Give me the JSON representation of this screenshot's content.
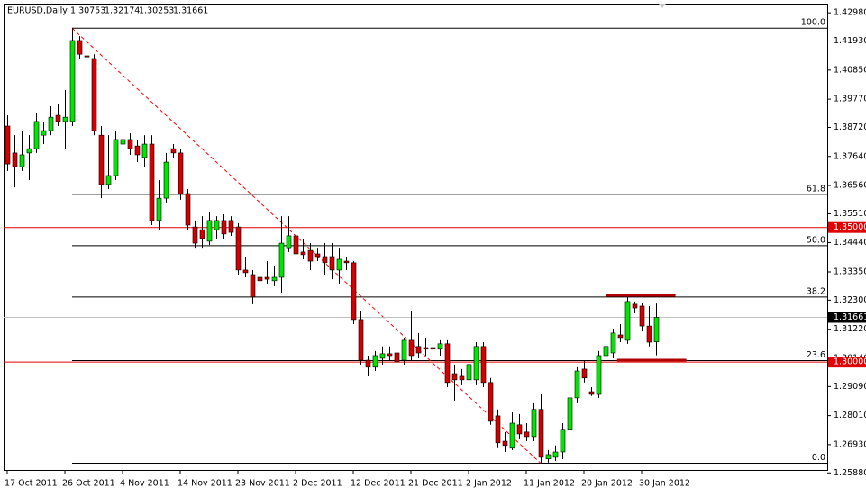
{
  "chart_data": {
    "type": "candlestick",
    "symbol": "EURUSD,Daily",
    "up_color": "#00e600",
    "down_color": "#d40000",
    "open": [
      1.3877,
      1.3777,
      1.3726,
      1.3777,
      1.3793,
      1.3843,
      1.386,
      1.3917,
      1.3894,
      1.3894,
      1.4195,
      1.4138,
      1.4128,
      1.3843,
      1.366,
      1.3693,
      1.381,
      1.3827,
      1.3803,
      1.376,
      1.381,
      1.3526,
      1.3609,
      1.3793,
      1.3777,
      1.3626,
      1.3502,
      1.3492,
      1.3449,
      1.3492,
      1.3526,
      1.3526,
      1.3502,
      1.3342,
      1.3325,
      1.3315,
      1.3315,
      1.3302,
      1.3315,
      1.3425,
      1.3469,
      1.3409,
      1.3415,
      1.3402,
      1.3392,
      1.3392,
      1.3342,
      1.3375,
      1.3369,
      1.3158,
      1.3007,
      1.2981,
      1.3014,
      1.3031,
      1.3034,
      1.3007,
      1.3081,
      1.3058,
      1.3054,
      1.3054,
      1.3048,
      1.3068,
      1.2957,
      1.2947,
      1.2934,
      1.2934,
      1.3058,
      1.2924,
      1.28,
      1.2706,
      1.268,
      1.2767,
      1.274,
      1.2723,
      1.2824,
      1.264,
      1.2646,
      1.2666,
      1.2747,
      1.2867,
      1.2974,
      1.289,
      1.288,
      1.3024,
      1.3034,
      1.3101,
      1.3081,
      1.3215,
      1.3208,
      1.3134,
      1.30753
    ],
    "high": [
      1.3917,
      1.3843,
      1.386,
      1.3843,
      1.3927,
      1.3894,
      1.395,
      1.396,
      1.4011,
      1.4241,
      1.4211,
      1.4161,
      1.4144,
      1.3877,
      1.3843,
      1.386,
      1.386,
      1.385,
      1.3827,
      1.3843,
      1.3843,
      1.3676,
      1.3777,
      1.381,
      1.3793,
      1.3643,
      1.3526,
      1.3542,
      1.3559,
      1.3542,
      1.3549,
      1.3542,
      1.3516,
      1.3392,
      1.3342,
      1.3342,
      1.3375,
      1.3359,
      1.3542,
      1.3542,
      1.3542,
      1.3459,
      1.3442,
      1.3425,
      1.3442,
      1.3442,
      1.3425,
      1.3392,
      1.3375,
      1.3191,
      1.3024,
      1.3041,
      1.3058,
      1.3058,
      1.3048,
      1.3091,
      1.3191,
      1.3108,
      1.3091,
      1.3074,
      1.3081,
      1.3081,
      1.2991,
      1.2974,
      1.3024,
      1.3074,
      1.3074,
      1.2941,
      1.2824,
      1.274,
      1.2813,
      1.2807,
      1.2773,
      1.2847,
      1.288,
      1.2673,
      1.269,
      1.2773,
      1.289,
      1.2981,
      1.3007,
      1.2907,
      1.3041,
      1.3074,
      1.3124,
      1.3141,
      1.3242,
      1.3225,
      1.3221,
      1.3208,
      1.32174
    ],
    "low": [
      1.371,
      1.3649,
      1.371,
      1.3676,
      1.3777,
      1.381,
      1.3843,
      1.3877,
      1.3793,
      1.3877,
      1.4128,
      1.4124,
      1.3843,
      1.3609,
      1.3643,
      1.3676,
      1.376,
      1.377,
      1.3743,
      1.3726,
      1.3509,
      1.3492,
      1.3593,
      1.376,
      1.3603,
      1.3492,
      1.3425,
      1.3425,
      1.3435,
      1.3459,
      1.3459,
      1.3469,
      1.3325,
      1.3315,
      1.3215,
      1.3282,
      1.3292,
      1.3282,
      1.3258,
      1.3409,
      1.3392,
      1.3382,
      1.3342,
      1.3375,
      1.3325,
      1.3308,
      1.3292,
      1.3342,
      1.3141,
      1.2991,
      1.2947,
      1.2967,
      1.2991,
      1.3007,
      1.2991,
      1.2991,
      1.3007,
      1.3014,
      1.3024,
      1.3024,
      1.3024,
      1.2907,
      1.2857,
      1.2914,
      1.2924,
      1.2914,
      1.2907,
      1.2767,
      1.268,
      1.2666,
      1.2673,
      1.2713,
      1.2706,
      1.2706,
      1.2626,
      1.2626,
      1.2633,
      1.2639,
      1.2723,
      1.2847,
      1.2924,
      1.2874,
      1.2867,
      1.2941,
      1.3014,
      1.3074,
      1.3068,
      1.3181,
      1.3114,
      1.3058,
      1.30253
    ],
    "close": [
      1.3736,
      1.3726,
      1.377,
      1.3793,
      1.3894,
      1.386,
      1.391,
      1.3894,
      1.391,
      1.4195,
      1.4144,
      1.4134,
      1.386,
      1.366,
      1.3693,
      1.3827,
      1.3827,
      1.3793,
      1.377,
      1.381,
      1.3526,
      1.3609,
      1.3743,
      1.3777,
      1.3626,
      1.3509,
      1.3442,
      1.3459,
      1.3526,
      1.3526,
      1.3476,
      1.3482,
      1.3342,
      1.3332,
      1.3242,
      1.3302,
      1.3308,
      1.3315,
      1.3442,
      1.3469,
      1.3402,
      1.3399,
      1.3375,
      1.3392,
      1.3369,
      1.3342,
      1.3382,
      1.3369,
      1.3158,
      1.3007,
      1.2981,
      1.3024,
      1.3031,
      1.3024,
      1.3001,
      1.3081,
      1.3024,
      1.3034,
      1.3048,
      1.3048,
      1.3068,
      1.2924,
      1.2934,
      1.2934,
      1.2991,
      1.3058,
      1.2924,
      1.278,
      1.27,
      1.269,
      1.2773,
      1.2733,
      1.2723,
      1.2824,
      1.2646,
      1.2656,
      1.2666,
      1.2747,
      1.2867,
      1.2967,
      1.2941,
      1.288,
      1.3024,
      1.3058,
      1.3108,
      1.3091,
      1.3225,
      1.3201,
      1.3134,
      1.3074,
      1.31661
    ],
    "ylim": [
      1.2599,
      1.4332
    ],
    "yticks": [
      {
        "value": 1.4298,
        "label": "1.42980"
      },
      {
        "value": 1.4193,
        "label": "1.41930"
      },
      {
        "value": 1.4085,
        "label": "1.40850"
      },
      {
        "value": 1.3977,
        "label": "1.39770"
      },
      {
        "value": 1.3872,
        "label": "1.38720"
      },
      {
        "value": 1.3764,
        "label": "1.37640"
      },
      {
        "value": 1.3656,
        "label": "1.36560"
      },
      {
        "value": 1.3551,
        "label": "1.35510"
      },
      {
        "value": 1.3444,
        "label": "1.34440"
      },
      {
        "value": 1.3335,
        "label": "1.33350"
      },
      {
        "value": 1.323,
        "label": "1.32300"
      },
      {
        "value": 1.3122,
        "label": "1.31220"
      },
      {
        "value": 1.3014,
        "label": "1.30140"
      },
      {
        "value": 1.2909,
        "label": "1.29090"
      },
      {
        "value": 1.2801,
        "label": "1.28010"
      },
      {
        "value": 1.2693,
        "label": "1.26930"
      },
      {
        "value": 1.2588,
        "label": "1.25880"
      }
    ],
    "xticks": [
      {
        "value": 0,
        "label": "17 Oct 2011"
      },
      {
        "value": 8,
        "label": "26 Oct 2011"
      },
      {
        "value": 16,
        "label": "4 Nov 2011"
      },
      {
        "value": 24,
        "label": "14 Nov 2011"
      },
      {
        "value": 32,
        "label": "23 Nov 2011"
      },
      {
        "value": 40,
        "label": "2 Dec 2011"
      },
      {
        "value": 48,
        "label": "12 Dec 2011"
      },
      {
        "value": 56,
        "label": "21 Dec 2011"
      },
      {
        "value": 64,
        "label": "2 Jan 2012"
      },
      {
        "value": 72,
        "label": "11 Jan 2012"
      },
      {
        "value": 80,
        "label": "20 Jan 2012"
      },
      {
        "value": 88,
        "label": "30 Jan 2012"
      }
    ],
    "horizontal_lines": [
      {
        "value": 1.35,
        "label": "1.35000",
        "color": "#e00000"
      },
      {
        "value": 1.3,
        "label": "1.30000",
        "color": "#e00000"
      }
    ],
    "fibonacci": {
      "high": 1.4241,
      "low": 1.2624,
      "start": 9,
      "end": 74,
      "color": "#ff0000",
      "levels": [
        {
          "value": 100,
          "label": "100.0"
        },
        61.8,
        {
          "value": 50,
          "label": "50.0"
        },
        38.2,
        23.6,
        {
          "value": 0,
          "label": "0.0"
        }
      ]
    },
    "marked_levels": [
      {
        "value": 1.3248,
        "from": 83,
        "to": 92.7,
        "color": "#b00000"
      },
      {
        "value": 1.3007,
        "from": 84.6,
        "to": 94.2,
        "color": "#b00000"
      }
    ]
  }
}
